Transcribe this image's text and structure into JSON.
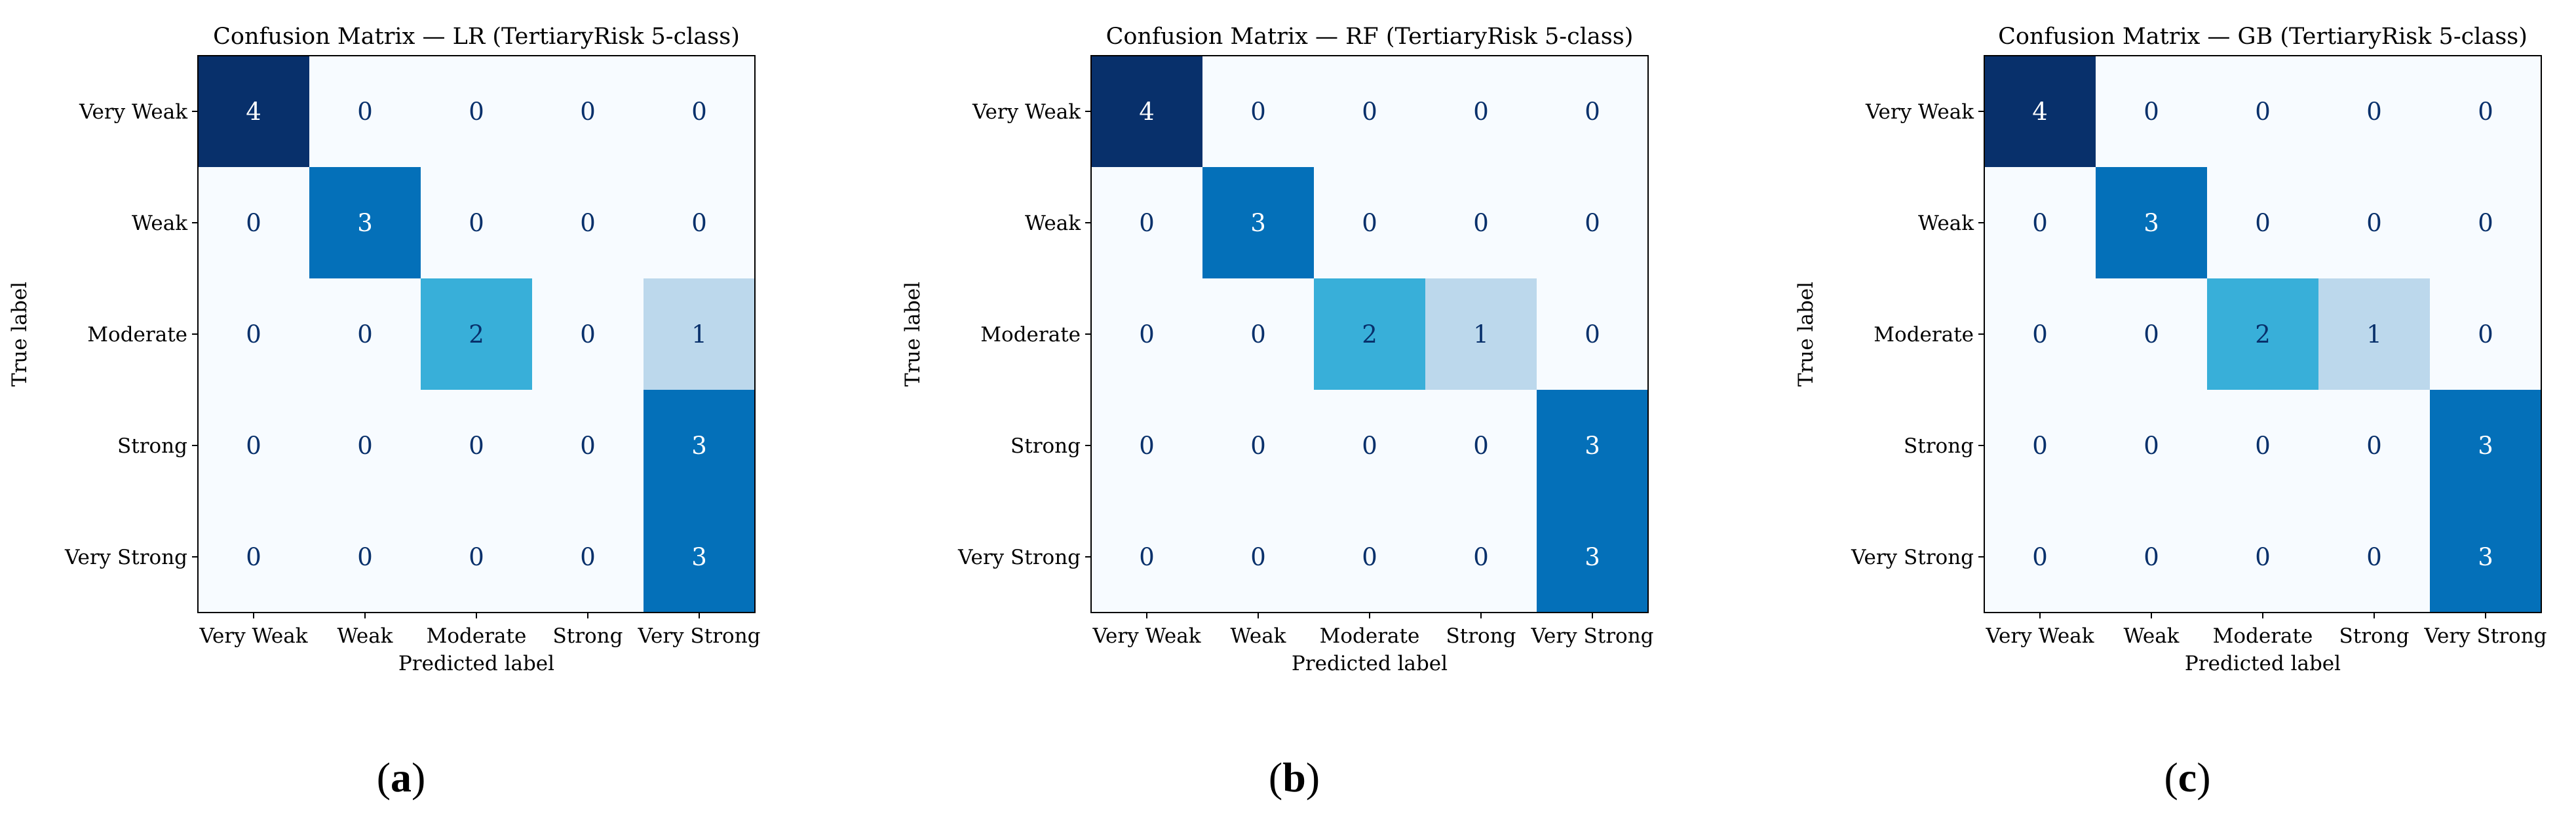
{
  "figure": {
    "panels": [
      {
        "letter": "a"
      },
      {
        "letter": "b"
      },
      {
        "letter": "c"
      }
    ]
  },
  "chart_data": [
    {
      "type": "heatmap",
      "title": "Confusion Matrix — LR (TertiaryRisk 5-class)",
      "xlabel": "Predicted label",
      "ylabel": "True label",
      "x_categories": [
        "Very Weak",
        "Weak",
        "Moderate",
        "Strong",
        "Very Strong"
      ],
      "y_categories": [
        "Very Weak",
        "Weak",
        "Moderate",
        "Strong",
        "Very Strong"
      ],
      "colormap": "Blues",
      "vmin": 0,
      "vmax": 4,
      "matrix": [
        [
          4,
          0,
          0,
          0,
          0
        ],
        [
          0,
          3,
          0,
          0,
          0
        ],
        [
          0,
          0,
          2,
          0,
          1
        ],
        [
          0,
          0,
          0,
          0,
          3
        ],
        [
          0,
          0,
          0,
          0,
          3
        ]
      ]
    },
    {
      "type": "heatmap",
      "title": "Confusion Matrix — RF (TertiaryRisk 5-class)",
      "xlabel": "Predicted label",
      "ylabel": "True label",
      "x_categories": [
        "Very Weak",
        "Weak",
        "Moderate",
        "Strong",
        "Very Strong"
      ],
      "y_categories": [
        "Very Weak",
        "Weak",
        "Moderate",
        "Strong",
        "Very Strong"
      ],
      "colormap": "Blues",
      "vmin": 0,
      "vmax": 4,
      "matrix": [
        [
          4,
          0,
          0,
          0,
          0
        ],
        [
          0,
          3,
          0,
          0,
          0
        ],
        [
          0,
          0,
          2,
          1,
          0
        ],
        [
          0,
          0,
          0,
          0,
          3
        ],
        [
          0,
          0,
          0,
          0,
          3
        ]
      ]
    },
    {
      "type": "heatmap",
      "title": "Confusion Matrix — GB (TertiaryRisk 5-class)",
      "xlabel": "Predicted label",
      "ylabel": "True label",
      "x_categories": [
        "Very Weak",
        "Weak",
        "Moderate",
        "Strong",
        "Very Strong"
      ],
      "y_categories": [
        "Very Weak",
        "Weak",
        "Moderate",
        "Strong",
        "Very Strong"
      ],
      "colormap": "Blues",
      "vmin": 0,
      "vmax": 4,
      "matrix": [
        [
          4,
          0,
          0,
          0,
          0
        ],
        [
          0,
          3,
          0,
          0,
          0
        ],
        [
          0,
          0,
          2,
          1,
          0
        ],
        [
          0,
          0,
          0,
          0,
          3
        ],
        [
          0,
          0,
          0,
          0,
          3
        ]
      ]
    }
  ],
  "colors": {
    "0": "#f7fbff",
    "1": "#bcd8ec",
    "2": "#38afd9",
    "3": "#0470b9",
    "4": "#08306b",
    "text_dark": "#08306b",
    "text_light": "#ffffff",
    "axis": "#000000"
  }
}
